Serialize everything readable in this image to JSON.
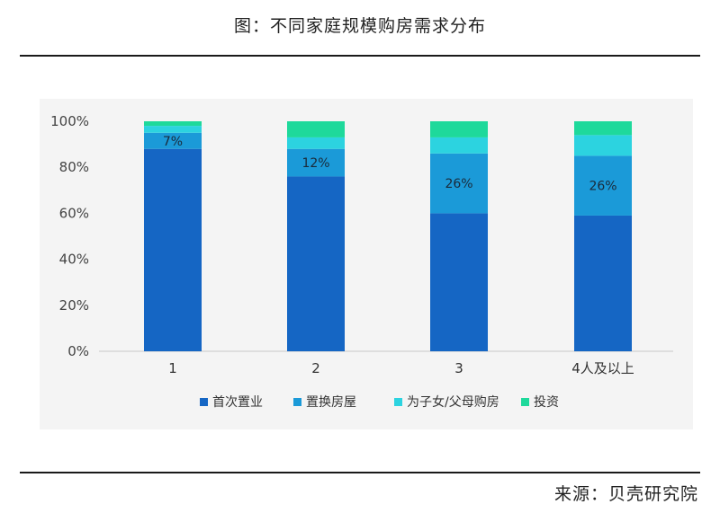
{
  "title": "图：不同家庭规模购房需求分布",
  "source": "来源：贝壳研究院",
  "chart_data": {
    "type": "bar",
    "stacked": true,
    "categories": [
      "1",
      "2",
      "3",
      "4人及以上"
    ],
    "y_ticks": [
      "0%",
      "20%",
      "40%",
      "60%",
      "80%",
      "100%"
    ],
    "ylim": [
      0,
      100
    ],
    "grid": false,
    "legend_position": "bottom",
    "series": [
      {
        "name": "首次置业",
        "color": "#1566c4",
        "values": [
          88,
          76,
          60,
          59
        ]
      },
      {
        "name": "置换房屋",
        "color": "#1b9ad8",
        "values": [
          7,
          12,
          26,
          26
        ]
      },
      {
        "name": "为子女/父母购房",
        "color": "#2cd3e0",
        "values": [
          3,
          5,
          7,
          9
        ]
      },
      {
        "name": "投资",
        "color": "#1ed99b",
        "values": [
          2,
          7,
          7,
          6
        ]
      }
    ],
    "data_labels": [
      {
        "series_index": 1,
        "labels": [
          "7%",
          "12%",
          "26%",
          "26%"
        ]
      }
    ]
  }
}
